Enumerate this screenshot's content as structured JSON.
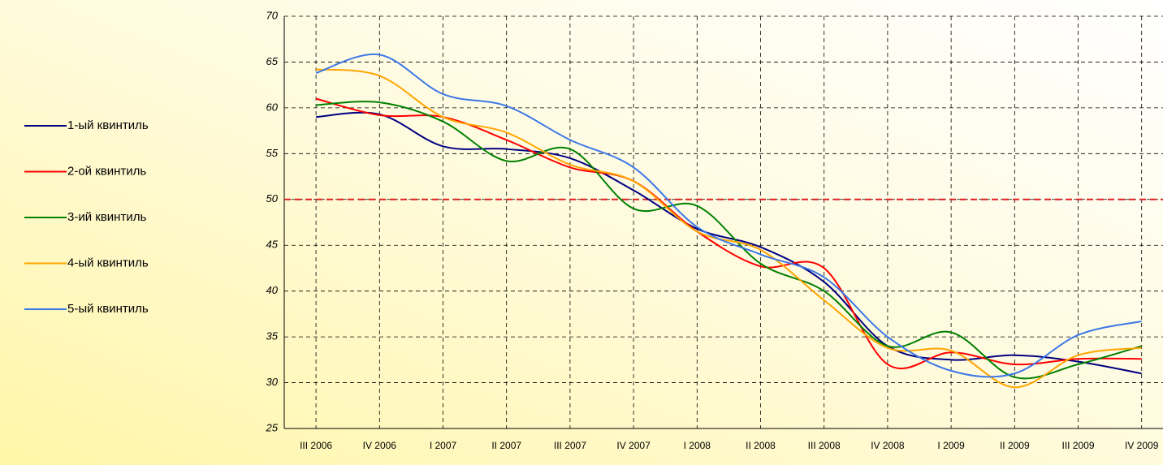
{
  "chart_data": {
    "type": "line",
    "categories": [
      "III 2006",
      "IV 2006",
      "I 2007",
      "II 2007",
      "III 2007",
      "IV 2007",
      "I 2008",
      "II 2008",
      "III 2008",
      "IV 2008",
      "I 2009",
      "II 2009",
      "III 2009",
      "IV 2009"
    ],
    "series": [
      {
        "name": "1-ый квинтиль",
        "color": "#000080",
        "values": [
          59,
          59.3,
          55.8,
          55.5,
          54.5,
          51,
          46.8,
          44.8,
          41,
          34,
          32.5,
          33,
          32.3,
          31
        ]
      },
      {
        "name": "2-ой квинтиль",
        "color": "#ff0000",
        "values": [
          61,
          59.2,
          59,
          56.5,
          53.5,
          52,
          46.5,
          42.7,
          42.5,
          32,
          33.3,
          32,
          32.6,
          32.6
        ]
      },
      {
        "name": "3-ий квинтиль",
        "color": "#008000",
        "values": [
          60.3,
          60.6,
          58.5,
          54.2,
          55.5,
          49,
          49.3,
          43,
          40,
          34,
          35.5,
          30.6,
          32,
          34
        ]
      },
      {
        "name": "4-ый квинтиль",
        "color": "#ffa500",
        "values": [
          64.2,
          63.5,
          59,
          57.3,
          53.8,
          52,
          46.5,
          44.5,
          39,
          33.8,
          33.5,
          29.5,
          33,
          33.8
        ]
      },
      {
        "name": "5-ый квинтиль",
        "color": "#3c78e6",
        "values": [
          63.8,
          65.8,
          61.5,
          60.2,
          56.5,
          53.5,
          47,
          44,
          41.5,
          35,
          31.3,
          31,
          35.2,
          36.7
        ]
      }
    ],
    "ylim": [
      25,
      70
    ],
    "yticks": [
      25,
      30,
      35,
      40,
      45,
      50,
      55,
      60,
      65,
      70
    ],
    "grid": true,
    "smooth": true,
    "legend": "left",
    "reference_line": {
      "value": 50,
      "color": "#e02020"
    }
  }
}
